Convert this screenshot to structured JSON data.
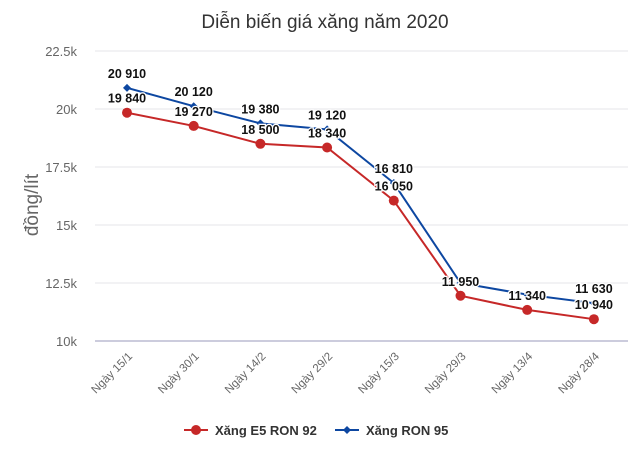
{
  "chart_data": {
    "type": "line",
    "title": "Diễn biến giá xăng năm 2020",
    "ylabel": "đồng/lít",
    "xlabel": "",
    "categories": [
      "Ngày 15/1",
      "Ngày 30/1",
      "Ngày 14/2",
      "Ngày 29/2",
      "Ngày 15/3",
      "Ngày 29/3",
      "Ngày 13/4",
      "Ngày 28/4"
    ],
    "ylim": [
      10000,
      22500
    ],
    "yticks": [
      10000,
      12500,
      15000,
      17500,
      20000,
      22500
    ],
    "ytick_labels": [
      "10k",
      "12.5k",
      "15k",
      "17.5k",
      "20k",
      "22.5k"
    ],
    "grid": true,
    "legend_position": "bottom",
    "series": [
      {
        "name": "Xăng E5 RON 92",
        "color": "#c62828",
        "marker": "circle",
        "values": [
          19840,
          19270,
          18500,
          18340,
          16050,
          11950,
          11340,
          10940
        ],
        "labels": [
          "19 840",
          "19 270",
          "18 500",
          "18 340",
          "16 050",
          "11 950",
          "11 340",
          "10 940"
        ]
      },
      {
        "name": "Xăng RON 95",
        "color": "#0d47a1",
        "marker": "diamond",
        "values": [
          20910,
          20120,
          19380,
          19120,
          16810,
          12500,
          12000,
          11630
        ],
        "labels": [
          "20 910",
          "20 120",
          "19 380",
          "19 120",
          "16 810",
          null,
          null,
          "11 630"
        ]
      }
    ]
  }
}
